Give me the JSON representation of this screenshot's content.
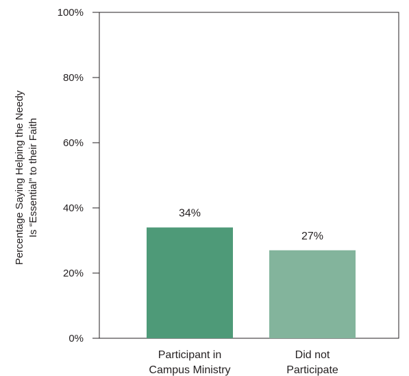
{
  "chart_data": {
    "type": "bar",
    "title": "",
    "xlabel": "",
    "ylabel": [
      "Percentage Saying Helping the Needy",
      "Is “Essential” to their Faith"
    ],
    "categories": [
      [
        "Participant in",
        "Campus Ministry"
      ],
      [
        "Did not",
        "Participate"
      ]
    ],
    "values": [
      34,
      27
    ],
    "data_labels": [
      "34%",
      "27%"
    ],
    "bar_colors": [
      "#4e9a78",
      "#83b49c"
    ],
    "ylim": [
      0,
      100
    ],
    "y_ticks": [
      0,
      20,
      40,
      60,
      80,
      100
    ],
    "y_tick_labels": [
      "0%",
      "20%",
      "40%",
      "60%",
      "80%",
      "100%"
    ],
    "grid": false,
    "legend": "none"
  },
  "colors": {
    "axis": "#231f20",
    "text": "#231f20",
    "background": "#ffffff"
  }
}
